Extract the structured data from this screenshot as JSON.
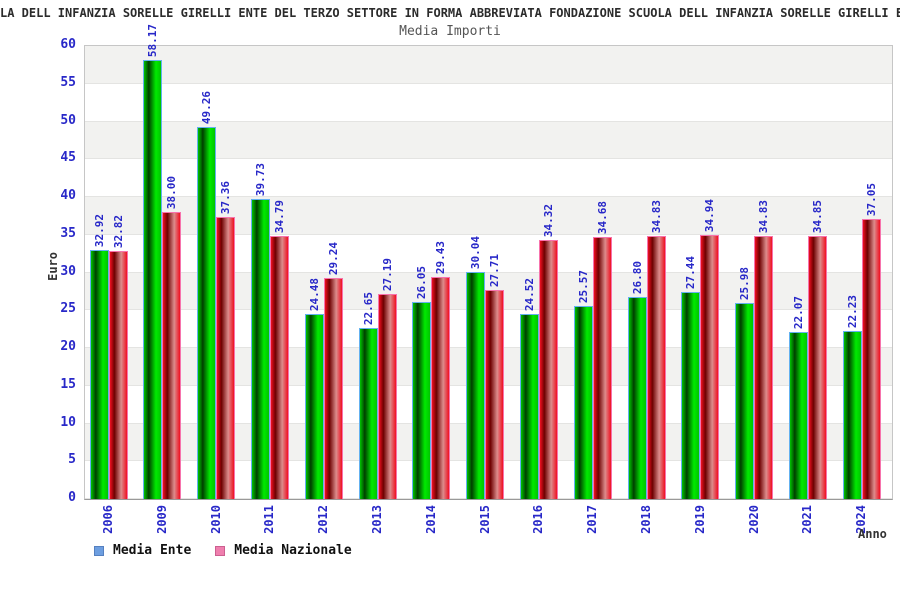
{
  "page": {
    "title_line": "LA DELL INFANZIA SORELLE GIRELLI ENTE DEL TERZO SETTORE IN FORMA ABBREVIATA FONDAZIONE SCUOLA DELL INFANZIA SORELLE GIRELLI ETS ("
  },
  "chart_data": {
    "type": "bar",
    "title": "Media Importi",
    "xlabel": "Anno",
    "ylabel": "Euro",
    "ylim": [
      0,
      60
    ],
    "ytick_step": 5,
    "grid": "horizontal-bands-alternating-gray-white",
    "legend_position": "bottom-left",
    "categories": [
      "2006",
      "2009",
      "2010",
      "2011",
      "2012",
      "2013",
      "2014",
      "2015",
      "2016",
      "2017",
      "2018",
      "2019",
      "2020",
      "2021",
      "2024"
    ],
    "series": [
      {
        "name": "Media Ente",
        "legend_swatch_color": "#6d9ee0",
        "bar_color_main": "#00c400",
        "bar_border_color": "#64b1f0",
        "values": [
          32.92,
          58.17,
          49.26,
          39.73,
          24.48,
          22.65,
          26.05,
          30.04,
          24.52,
          25.57,
          26.8,
          27.44,
          25.98,
          22.07,
          22.23
        ]
      },
      {
        "name": "Media Nazionale",
        "legend_swatch_color": "#ef7fae",
        "bar_color_main": "#ef1021",
        "bar_border_color": "#f773ad",
        "values": [
          32.82,
          38.0,
          37.36,
          34.79,
          29.24,
          27.19,
          29.43,
          27.71,
          34.32,
          34.68,
          34.83,
          34.94,
          34.83,
          34.85,
          37.05
        ]
      }
    ],
    "value_label_color": "#2828c8",
    "tick_label_color": "#2828c8",
    "value_label_rotation": -90,
    "xtick_rotation": -90
  }
}
